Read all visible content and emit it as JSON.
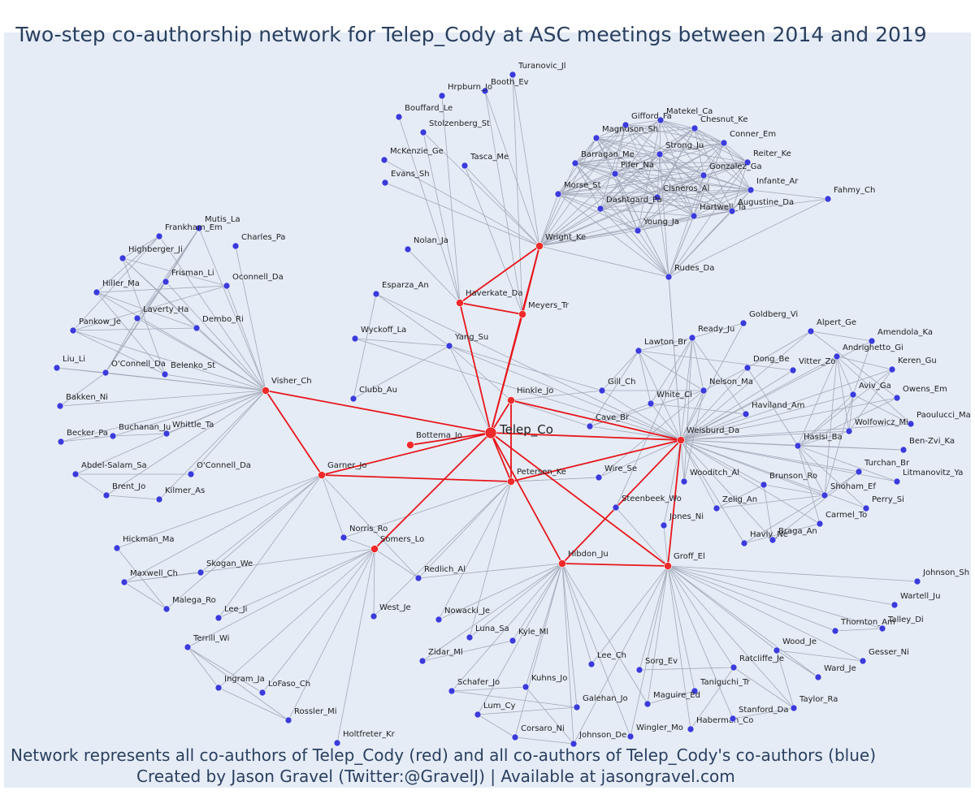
{
  "title": "Two-step co-authorship network for Telep_Cody at ASC meetings between 2014 and 2019",
  "footer_line1": "Network represents all co-authors of Telep_Cody (red) and all co-authors of Telep_Cody's co-authors (blue)",
  "footer_line2": "Created by Jason Gravel (Twitter:@GravelJ) | Available at jasongravel.com",
  "colors": {
    "background": "#e5ecf6",
    "red_node": "#ef2a2a",
    "blue_node": "#3b3bdc",
    "red_edge": "#e8161b",
    "grey_edge": "#a3a8b8",
    "text": "#2a3f5f"
  },
  "ego": "Telep_Co",
  "coauthors": [
    "Visher_Ch",
    "Garner_Jo",
    "Bottema_Jo",
    "Hinkle_Jo",
    "Petersen_Ke",
    "Haverkate_Da",
    "Meyers_Tr",
    "Wright_Ke",
    "Somers_Lo",
    "Hibdon_Ju",
    "Groff_El",
    "Weisburd_Da"
  ],
  "second_step_authors": [
    "Turanovic_Jl",
    "Booth_Ev",
    "Hrpburn_Jo",
    "Bouffard_Le",
    "Stolzenberg_St",
    "McKenzie_Ge",
    "Evans_Sh",
    "Tasca_Me",
    "Nolan_Ja",
    "Esparza_An",
    "Wyckoff_La",
    "Yang_Su",
    "Clubb_Au",
    "Gifford_Fa",
    "Matekel_Ca",
    "Chesnut_Ke",
    "Magnuson_Sh",
    "Strong_Ju",
    "Conner_Em",
    "Barragan_Me",
    "Pifer_Na",
    "Reiter_Ke",
    "Gonzalez_Ga",
    "Morse_St",
    "Cisneros_Al",
    "Infante_Ar",
    "Dashtgard_Pa",
    "Hartwell_Ta",
    "Augustine_Da",
    "Young_Ja",
    "Fahmy_Ch",
    "Rudes_Da",
    "Mutis_La",
    "Frankham_Em",
    "Charles_Pa",
    "Highberger_Ji",
    "Frisman_Li",
    "Oconnell_Da",
    "Hiller_Ma",
    "Laverty_Ha",
    "Dembo_Ri",
    "Pankow_Je",
    "Liu_Li",
    "O'Connell_Da",
    "Belenko_St",
    "Bakken_Ni",
    "Becker_Pa",
    "Buchanan_Ju",
    "Whittle_Ta",
    "Abdel-Salam_Sa",
    "O'Connell_Da",
    "Brent_Jo",
    "Kilmer_As",
    "Goldberg_Vi",
    "Ready_Ju",
    "Alpert_Ge",
    "Amendola_Ka",
    "Lawton_Br",
    "Vitter_Zo",
    "Andrighetto_Gi",
    "Dong_Be",
    "Keren_Gu",
    "Gill_Ch",
    "Nelson_Ma",
    "Aviv_Ga",
    "Owens_Em",
    "White_Cl",
    "Haviland_Am",
    "Cave_Br",
    "Wolfowicz_Mi",
    "Paoulucci_Ma",
    "Hasisi_Ba",
    "Ben-Zvi_Ka",
    "Wire_Se",
    "Turchan_Br",
    "Wooditch_Al",
    "Brunson_Ro",
    "Litmanovitz_Ya",
    "Shoham_Ef",
    "Perry_Si",
    "Steenbeek_Wo",
    "Zelig_An",
    "Carmel_To",
    "Jones_Ni",
    "Havly_Ne",
    "Braga_An",
    "Hickman_Ma",
    "Skogan_We",
    "Maxwell_Ch",
    "Malega_Ro",
    "Lee_Ji",
    "Norris_Ro",
    "Redlich_Al",
    "West_Je",
    "Nowacki_Je",
    "Luna_Sa",
    "Kyle_Ml",
    "Zidar_Ml",
    "Terrill_Wi",
    "Ingram_Ja",
    "LoFaso_Ch",
    "Rossler_Mi",
    "Holtfreter_Kr",
    "Schafer_Jo",
    "Kuhns_Jo",
    "Lee_Ch",
    "Galehan_Jo",
    "Lum_Cy",
    "Corsaro_Ni",
    "Johnson_De",
    "Wingler_Mo",
    "Sorg_Ev",
    "Taniguchi_Tr",
    "Maguire_Ed",
    "Haberman_Co",
    "Stanford_Da",
    "Taylor_Ra",
    "Ratcliffe_Je",
    "Ward_Je",
    "Wood_Je",
    "Gesser_Ni",
    "Thornton_Am",
    "Talley_Di",
    "Wartell_Ju",
    "Johnson_Sh"
  ]
}
